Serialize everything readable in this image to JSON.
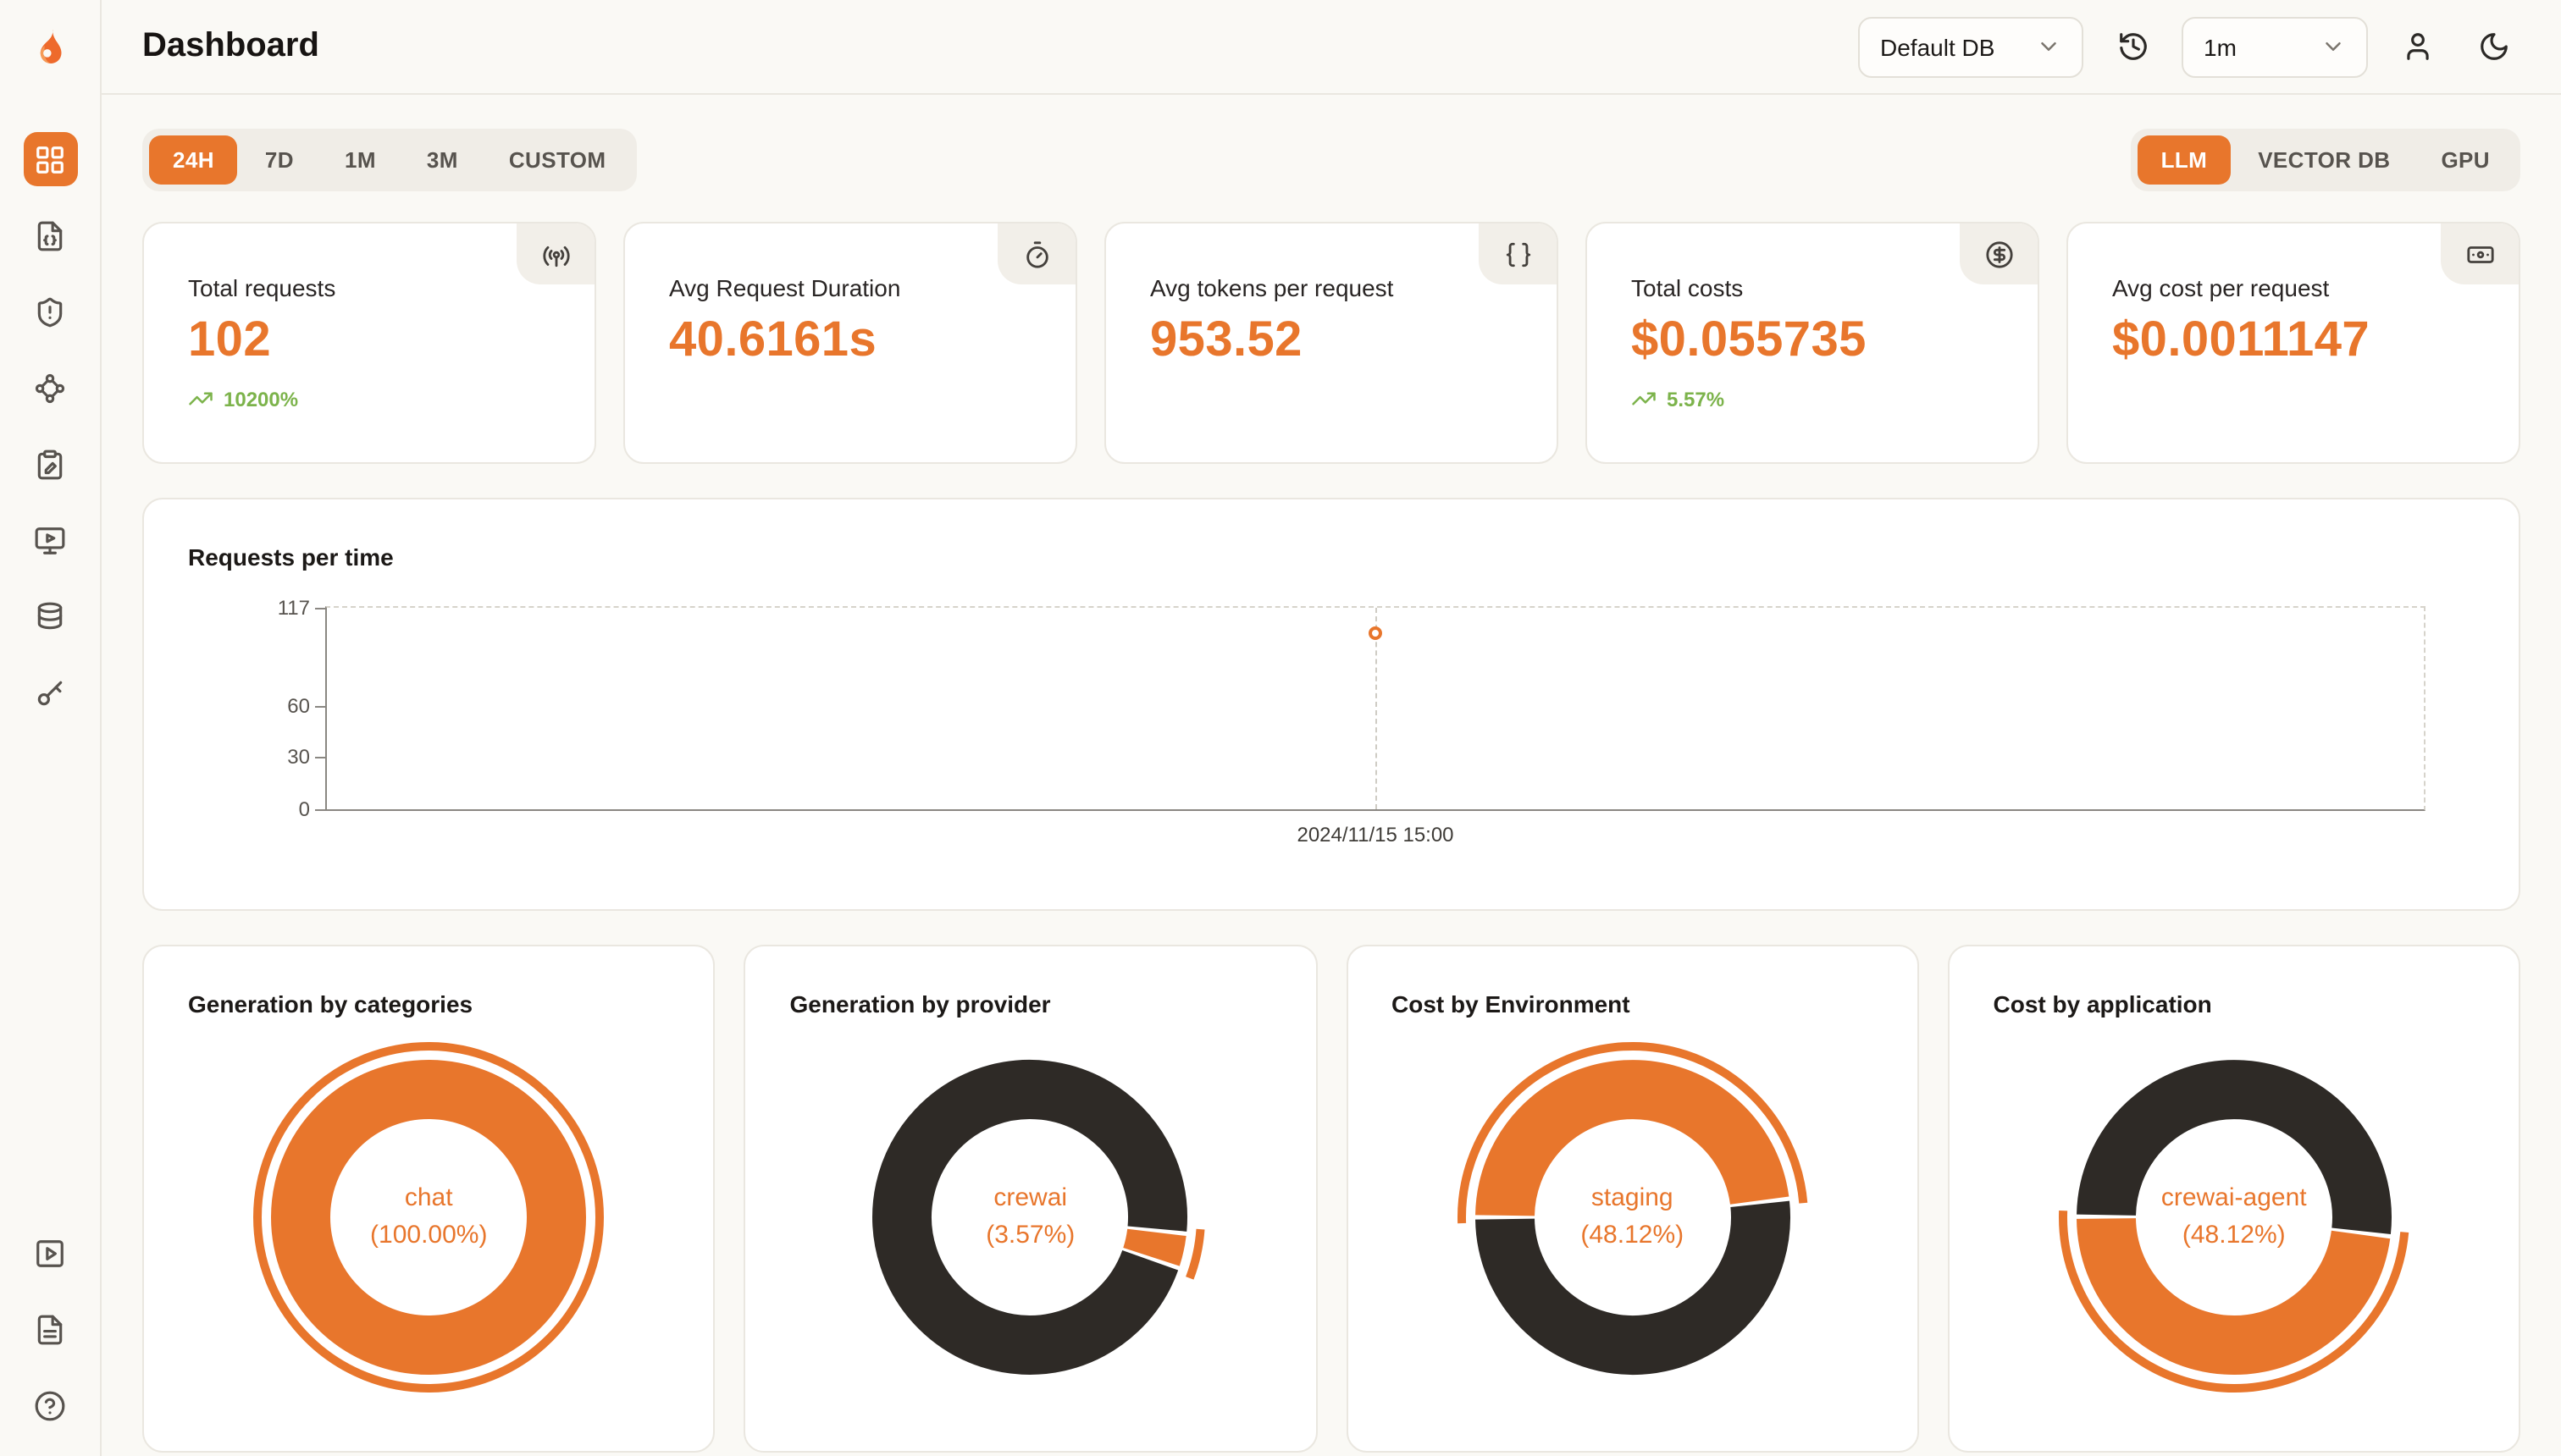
{
  "colors": {
    "accent": "#E8762C",
    "dark_slice": "#2E2A26",
    "positive": "#7CB34B"
  },
  "header": {
    "title": "Dashboard",
    "database_select": {
      "value": "Default DB"
    },
    "refresh_select": {
      "value": "1m"
    },
    "icons": [
      "history-icon",
      "user-icon",
      "moon-icon"
    ]
  },
  "sidebar": {
    "items": [
      {
        "name": "dashboard",
        "icon": "layout-grid-icon",
        "active": true
      },
      {
        "name": "requests",
        "icon": "file-json-icon",
        "active": false
      },
      {
        "name": "exceptions",
        "icon": "shield-alert-icon",
        "active": false
      },
      {
        "name": "traces",
        "icon": "waypoints-icon",
        "active": false
      },
      {
        "name": "evaluations",
        "icon": "clipboard-pen-icon",
        "active": false
      },
      {
        "name": "playground",
        "icon": "monitor-play-icon",
        "active": false
      },
      {
        "name": "databases",
        "icon": "database-icon",
        "active": false
      },
      {
        "name": "api-keys",
        "icon": "key-icon",
        "active": false
      }
    ],
    "footer_items": [
      {
        "name": "tutorials",
        "icon": "play-square-icon"
      },
      {
        "name": "documentation",
        "icon": "file-text-icon"
      },
      {
        "name": "help",
        "icon": "circle-help-icon"
      }
    ]
  },
  "filters": {
    "time_ranges": [
      "24H",
      "7D",
      "1M",
      "3M",
      "CUSTOM"
    ],
    "active_time_range": "24H",
    "modes": [
      "LLM",
      "VECTOR DB",
      "GPU"
    ],
    "active_mode": "LLM"
  },
  "stats": [
    {
      "label": "Total requests",
      "value": "102",
      "delta": "10200%",
      "icon": "antenna-icon"
    },
    {
      "label": "Avg Request Duration",
      "value": "40.6161s",
      "icon": "timer-icon"
    },
    {
      "label": "Avg tokens per request",
      "value": "953.52",
      "icon": "braces-icon"
    },
    {
      "label": "Total costs",
      "value": "$0.055735",
      "delta": "5.57%",
      "icon": "circle-dollar-icon"
    },
    {
      "label": "Avg cost per request",
      "value": "$0.0011147",
      "icon": "banknote-icon"
    }
  ],
  "chart_data": [
    {
      "type": "line",
      "title": "Requests per time",
      "x": [
        "2024/11/15 15:00"
      ],
      "series": [
        {
          "name": "requests",
          "values": [
            102
          ]
        }
      ],
      "y_ticks": [
        0,
        30,
        60,
        117
      ],
      "ylim": [
        0,
        117
      ],
      "point_x_fraction": 0.5,
      "grid": "dashed-top-right-frame",
      "point_color": "#E8762C",
      "legend": "none"
    },
    {
      "type": "pie",
      "title": "Generation by categories",
      "slices": [
        {
          "label": "chat",
          "value": 100.0,
          "color": "#E8762C"
        }
      ],
      "center_label": "chat",
      "center_value": "(100.00%)",
      "start_angle": 0,
      "legend": "none"
    },
    {
      "type": "pie",
      "title": "Generation by provider",
      "slices": [
        {
          "label": "crewai",
          "value": 3.57,
          "color": "#E8762C"
        },
        {
          "label": "",
          "value": 96.43,
          "color": "#2E2A26"
        }
      ],
      "center_label": "crewai",
      "center_value": "(3.57%)",
      "start_angle": 96,
      "legend": "none"
    },
    {
      "type": "pie",
      "title": "Cost by Environment",
      "slices": [
        {
          "label": "staging",
          "value": 48.12,
          "color": "#E8762C"
        },
        {
          "label": "",
          "value": 51.88,
          "color": "#2E2A26"
        }
      ],
      "center_label": "staging",
      "center_value": "(48.12%)",
      "start_angle": 270,
      "legend": "none"
    },
    {
      "type": "pie",
      "title": "Cost by application",
      "slices": [
        {
          "label": "crewai-agent",
          "value": 48.12,
          "color": "#E8762C"
        },
        {
          "label": "",
          "value": 51.88,
          "color": "#2E2A26"
        }
      ],
      "center_label": "crewai-agent",
      "center_value": "(48.12%)",
      "start_angle": 97,
      "legend": "none"
    }
  ]
}
